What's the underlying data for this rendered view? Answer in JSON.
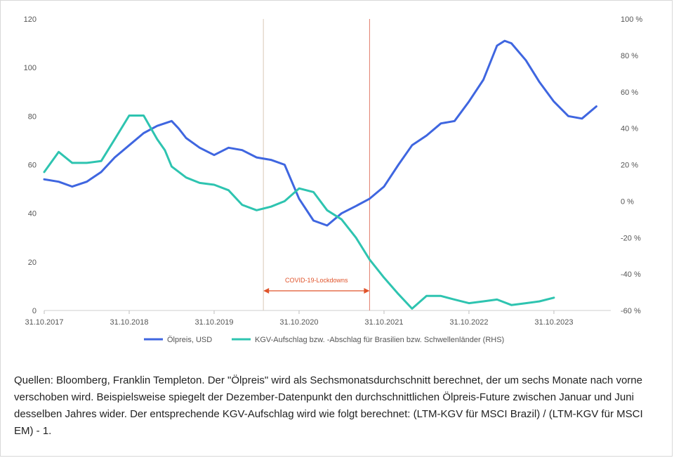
{
  "chart_data": {
    "type": "line",
    "x_ticks": [
      "31.10.2017",
      "31.10.2018",
      "31.10.2019",
      "31.10.2020",
      "31.10.2021",
      "31.10.2022",
      "31.10.2023"
    ],
    "y_left": {
      "min": 0,
      "max": 120,
      "ticks": [
        0,
        20,
        40,
        60,
        80,
        100,
        120
      ]
    },
    "y_right": {
      "min": -60,
      "max": 100,
      "ticks": [
        "-60 %",
        "-40 %",
        "-20 %",
        "0 %",
        "20 %",
        "40 %",
        "60 %",
        "80 %",
        "100 %"
      ],
      "values": [
        -60,
        -40,
        -20,
        0,
        20,
        40,
        60,
        80,
        100
      ]
    },
    "series": [
      {
        "name": "Ölpreis, USD",
        "axis": "left",
        "color": "#3f66e0",
        "x": [
          2017.0,
          2017.17,
          2017.33,
          2017.5,
          2017.67,
          2017.83,
          2018.0,
          2018.17,
          2018.33,
          2018.5,
          2018.58,
          2018.67,
          2018.83,
          2019.0,
          2019.17,
          2019.33,
          2019.5,
          2019.67,
          2019.83,
          2020.0,
          2020.17,
          2020.33,
          2020.5,
          2020.67,
          2020.83,
          2021.0,
          2021.17,
          2021.33,
          2021.5,
          2021.67,
          2021.83,
          2022.0,
          2022.17,
          2022.33,
          2022.42,
          2022.5,
          2022.67,
          2022.83,
          2023.0,
          2023.17,
          2023.33,
          2023.5
        ],
        "values": [
          54,
          53,
          51,
          53,
          57,
          63,
          68,
          73,
          76,
          78,
          75,
          71,
          67,
          64,
          67,
          66,
          63,
          62,
          60,
          46,
          37,
          35,
          40,
          43,
          46,
          51,
          60,
          68,
          72,
          77,
          78,
          86,
          95,
          109,
          111,
          110,
          103,
          94,
          86,
          80,
          79,
          84
        ]
      },
      {
        "name": "KGV-Aufschlag bzw. -Abschlag für Brasilien bzw. Schwellenländer (RHS)",
        "axis": "right",
        "color": "#2ec4b0",
        "x": [
          2017.0,
          2017.17,
          2017.33,
          2017.5,
          2017.67,
          2017.83,
          2018.0,
          2018.17,
          2018.33,
          2018.42,
          2018.5,
          2018.67,
          2018.83,
          2019.0,
          2019.17,
          2019.33,
          2019.5,
          2019.67,
          2019.83,
          2020.0,
          2020.17,
          2020.33,
          2020.5,
          2020.67,
          2020.83,
          2021.0,
          2021.17,
          2021.33,
          2021.5,
          2021.67,
          2021.83,
          2022.0,
          2022.17,
          2022.33,
          2022.5,
          2022.67,
          2022.83,
          2023.0
        ],
        "values": [
          16,
          27,
          21,
          21,
          22,
          34,
          47,
          47,
          34,
          28,
          19,
          13,
          10,
          9,
          6,
          -2,
          -5,
          -3,
          0,
          7,
          5,
          -5,
          -10,
          -20,
          -32,
          -42,
          -51,
          -59,
          -52,
          -52,
          -54,
          -56,
          -55,
          -54,
          -57,
          -56,
          -55,
          -53
        ]
      }
    ],
    "annotations": [
      {
        "label": "COVID-19-Lockdowns",
        "x_start": 2019.58,
        "x_end": 2020.83
      }
    ],
    "legend_position": "bottom",
    "grid": false
  },
  "caption": "Quellen: Bloomberg, Franklin Templeton. Der \"Ölpreis\" wird als Sechsmonatsdurchschnitt berechnet, der um sechs Monate nach vorne verschoben wird. Beispielsweise spiegelt der Dezember-Datenpunkt den durchschnittlichen Ölpreis-Future zwischen Januar und Juni desselben Jahres wider. Der entsprechende KGV-Aufschlag wird wie folgt berechnet: (LTM-KGV für MSCI Brazil) / (LTM-KGV für MSCI EM) - 1."
}
